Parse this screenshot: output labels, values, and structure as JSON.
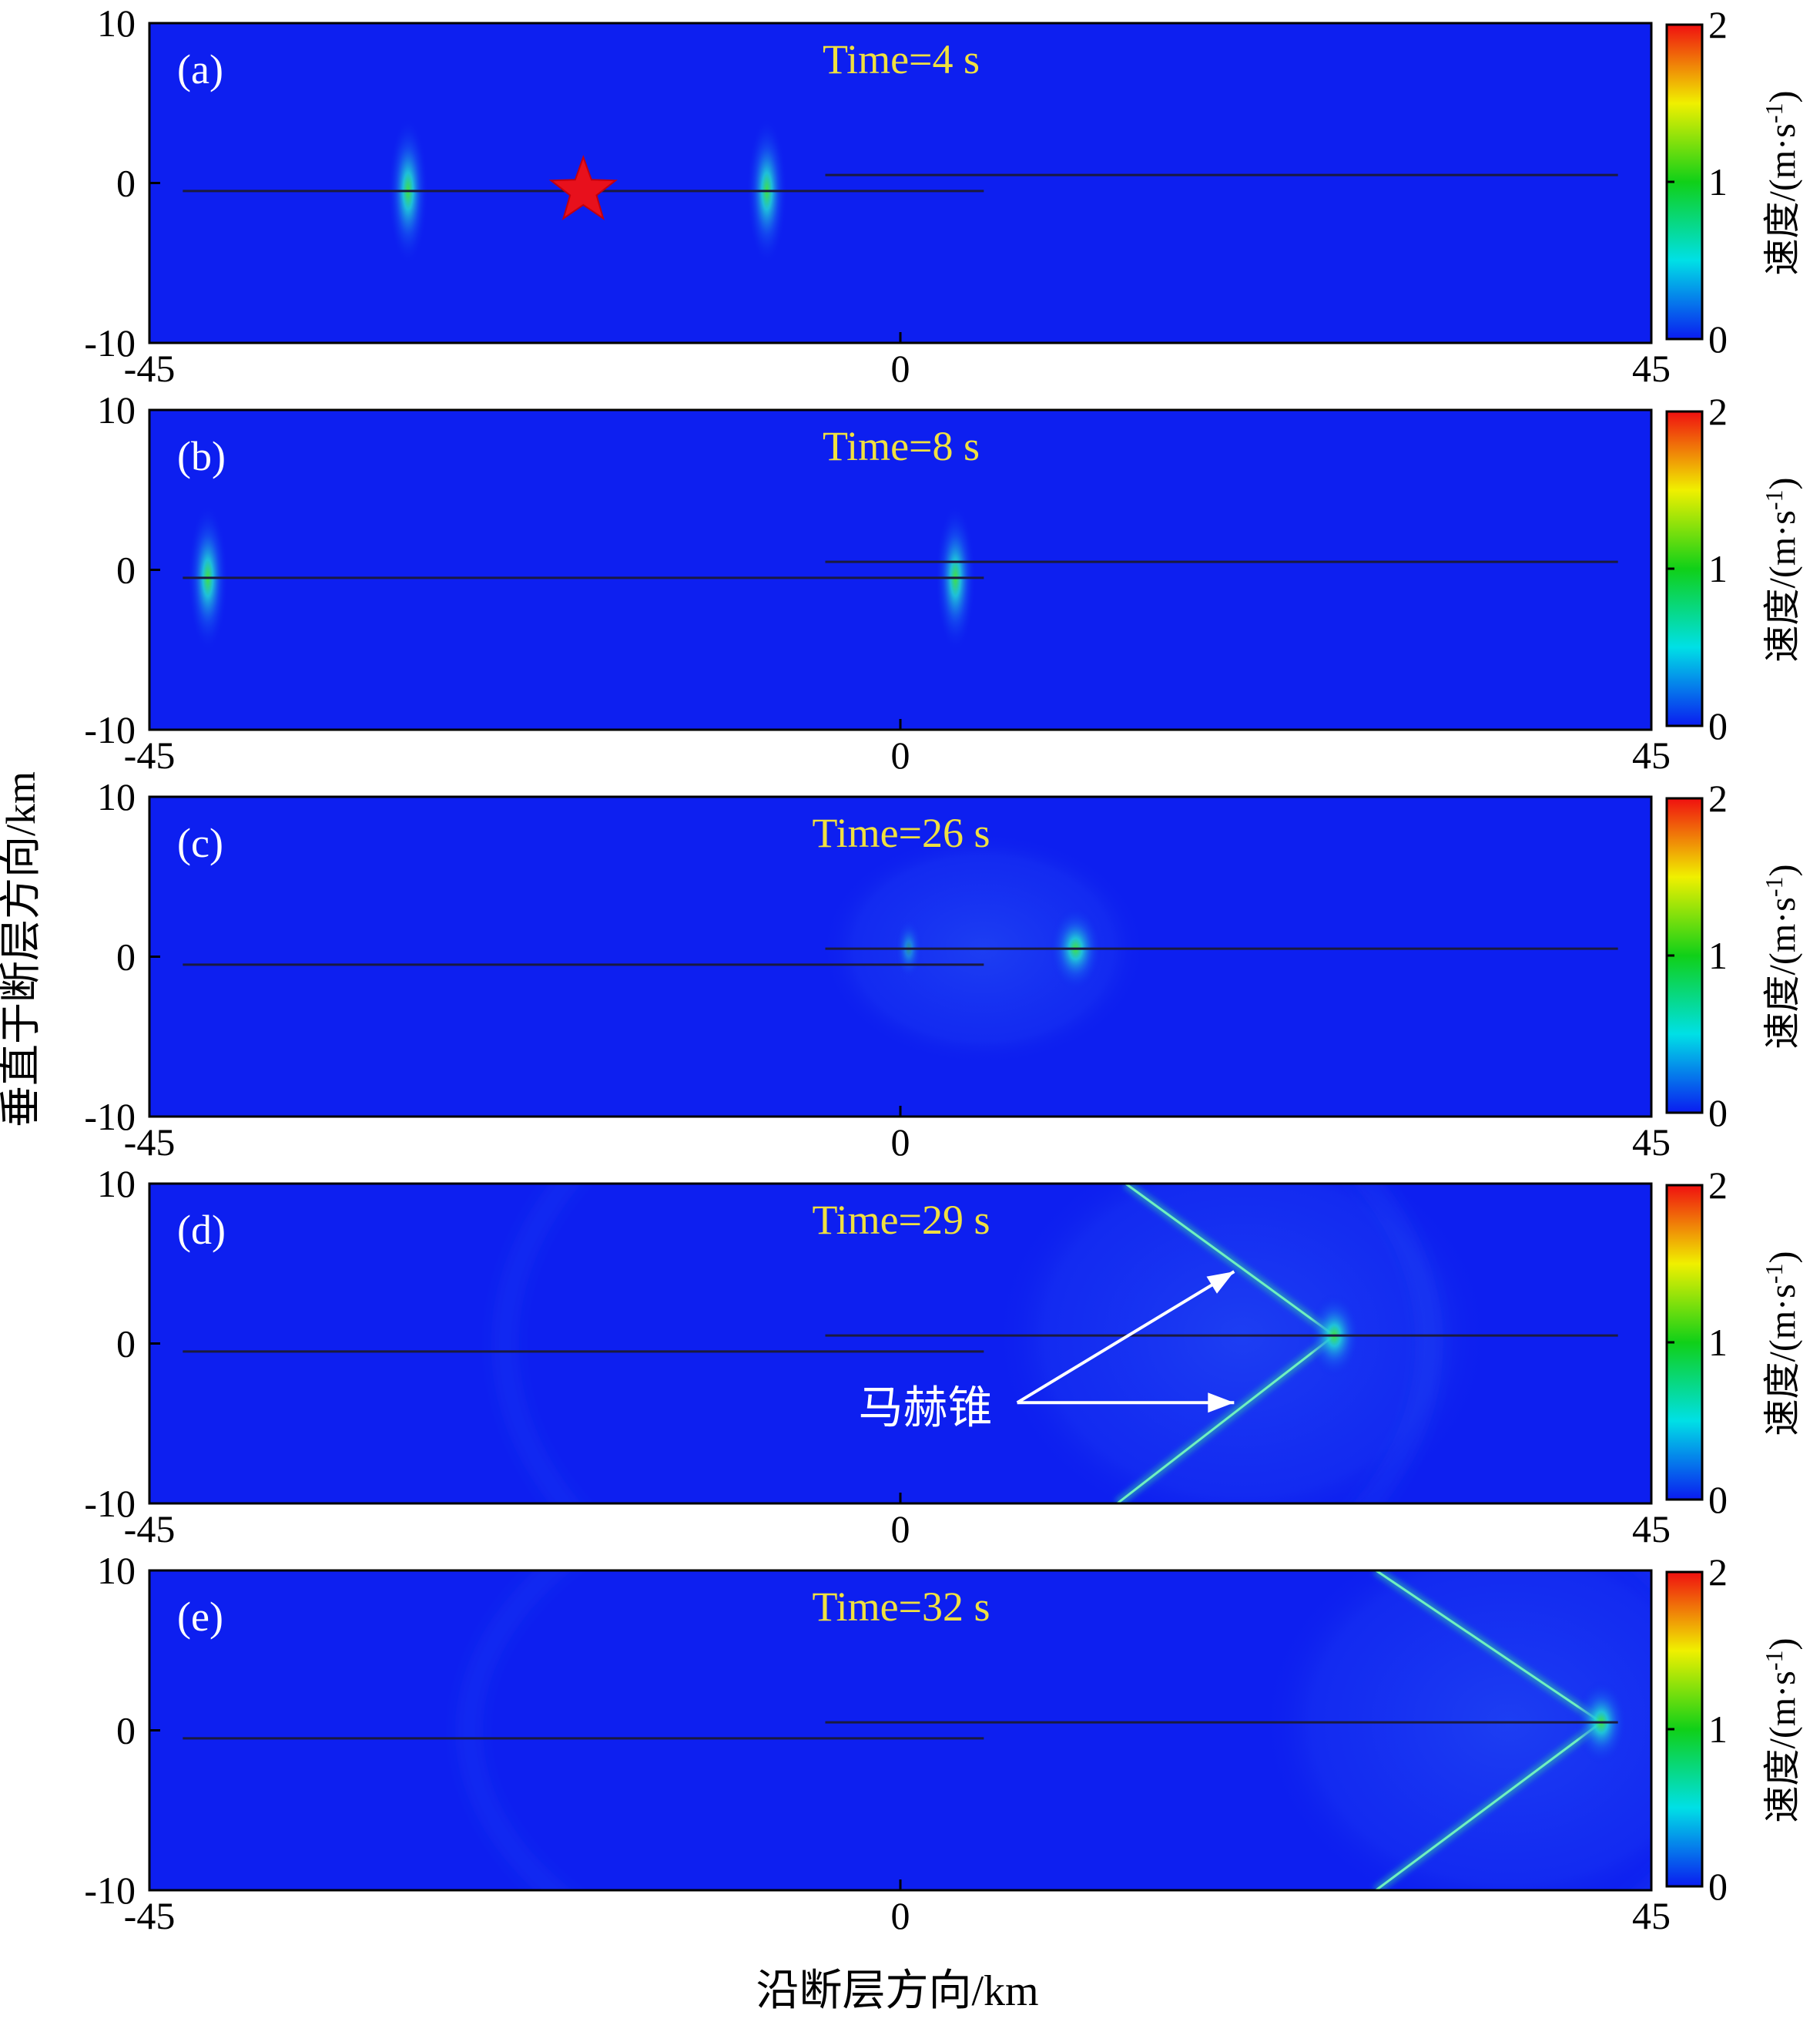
{
  "figure": {
    "ylabel": "垂直于断层方向/km",
    "xlabel": "沿断层方向/km"
  },
  "colorbar": {
    "label": "速度/(m·s",
    "label_sup": "-1",
    "label_close": ")",
    "ticks": [
      "2",
      "1",
      "0"
    ],
    "range": [
      0,
      2
    ],
    "colors": [
      "#0a1cf0",
      "#00e0e6",
      "#10d018",
      "#f0f000",
      "#f01010"
    ]
  },
  "background_color": "#0d1ff0",
  "title_color": "#f0e040",
  "chart_data": [
    {
      "type": "heatmap",
      "panel": "(a)",
      "title": "Time=4 s",
      "time_s": 4,
      "xlim": [
        -45,
        45
      ],
      "ylim": [
        -10,
        10
      ],
      "xticks": [
        "-45",
        "0",
        "45"
      ],
      "yticks": [
        "10",
        "0",
        "-10"
      ],
      "faults": [
        {
          "x": [
            -43,
            5
          ],
          "y": [
            -0.5,
            -0.5
          ]
        },
        {
          "x": [
            -4.5,
            43
          ],
          "y": [
            0.5,
            0.5
          ]
        }
      ],
      "fronts": [
        {
          "x": -29.5,
          "y": -0.5,
          "kind": "rupture-tip"
        },
        {
          "x": -8,
          "y": -0.5,
          "kind": "rupture-tip"
        }
      ],
      "hypocenter": {
        "x": -19,
        "y": -0.5
      }
    },
    {
      "type": "heatmap",
      "panel": "(b)",
      "title": "Time=8 s",
      "time_s": 8,
      "xlim": [
        -45,
        45
      ],
      "ylim": [
        -10,
        10
      ],
      "xticks": [
        "-45",
        "0",
        "45"
      ],
      "yticks": [
        "10",
        "0",
        "-10"
      ],
      "faults": [
        {
          "x": [
            -43,
            5
          ],
          "y": [
            -0.5,
            -0.5
          ]
        },
        {
          "x": [
            -4.5,
            43
          ],
          "y": [
            0.5,
            0.5
          ]
        }
      ],
      "fronts": [
        {
          "x": -41.5,
          "y": -0.5,
          "kind": "rupture-tip"
        },
        {
          "x": 3.3,
          "y": -0.5,
          "kind": "rupture-tip"
        }
      ]
    },
    {
      "type": "heatmap",
      "panel": "(c)",
      "title": "Time=26 s",
      "time_s": 26,
      "xlim": [
        -45,
        45
      ],
      "ylim": [
        -10,
        10
      ],
      "xticks": [
        "-45",
        "0",
        "45"
      ],
      "yticks": [
        "10",
        "0",
        "-10"
      ],
      "faults": [
        {
          "x": [
            -43,
            5
          ],
          "y": [
            -0.5,
            -0.5
          ]
        },
        {
          "x": [
            -4.5,
            43
          ],
          "y": [
            0.5,
            0.5
          ]
        }
      ],
      "fronts": [
        {
          "x": 10.5,
          "y": 0.5,
          "kind": "rupture-tip"
        },
        {
          "x": 0.5,
          "y": 0.5,
          "kind": "weak"
        }
      ]
    },
    {
      "type": "heatmap",
      "panel": "(d)",
      "title": "Time=29 s",
      "time_s": 29,
      "xlim": [
        -45,
        45
      ],
      "ylim": [
        -10,
        10
      ],
      "xticks": [
        "-45",
        "0",
        "45"
      ],
      "yticks": [
        "10",
        "0",
        "-10"
      ],
      "faults": [
        {
          "x": [
            -43,
            5
          ],
          "y": [
            -0.5,
            -0.5
          ]
        },
        {
          "x": [
            -4.5,
            43
          ],
          "y": [
            0.5,
            0.5
          ]
        }
      ],
      "fronts": [
        {
          "x": 26,
          "y": 0.5,
          "kind": "rupture-tip"
        }
      ],
      "mach_cone": {
        "tip_x": 26,
        "tip_y": 0.5,
        "upper_end_x": 13.5,
        "lower_end_x": 13
      },
      "annotation": {
        "text": "马赫锥",
        "x": 1.5,
        "y": -4
      },
      "arrows": [
        {
          "from": [
            7,
            -3.7
          ],
          "to": [
            20,
            4.5
          ]
        },
        {
          "from": [
            7,
            -3.7
          ],
          "to": [
            20,
            -3.7
          ]
        }
      ]
    },
    {
      "type": "heatmap",
      "panel": "(e)",
      "title": "Time=32 s",
      "time_s": 32,
      "xlim": [
        -45,
        45
      ],
      "ylim": [
        -10,
        10
      ],
      "xticks": [
        "-45",
        "0",
        "45"
      ],
      "yticks": [
        "10",
        "0",
        "-10"
      ],
      "faults": [
        {
          "x": [
            -43,
            5
          ],
          "y": [
            -0.5,
            -0.5
          ]
        },
        {
          "x": [
            -4.5,
            43
          ],
          "y": [
            0.5,
            0.5
          ]
        }
      ],
      "fronts": [
        {
          "x": 42,
          "y": 0.5,
          "kind": "rupture-tip"
        }
      ],
      "mach_cone": {
        "tip_x": 42,
        "tip_y": 0.5,
        "upper_end_x": 28.5,
        "lower_end_x": 28.5
      }
    }
  ]
}
